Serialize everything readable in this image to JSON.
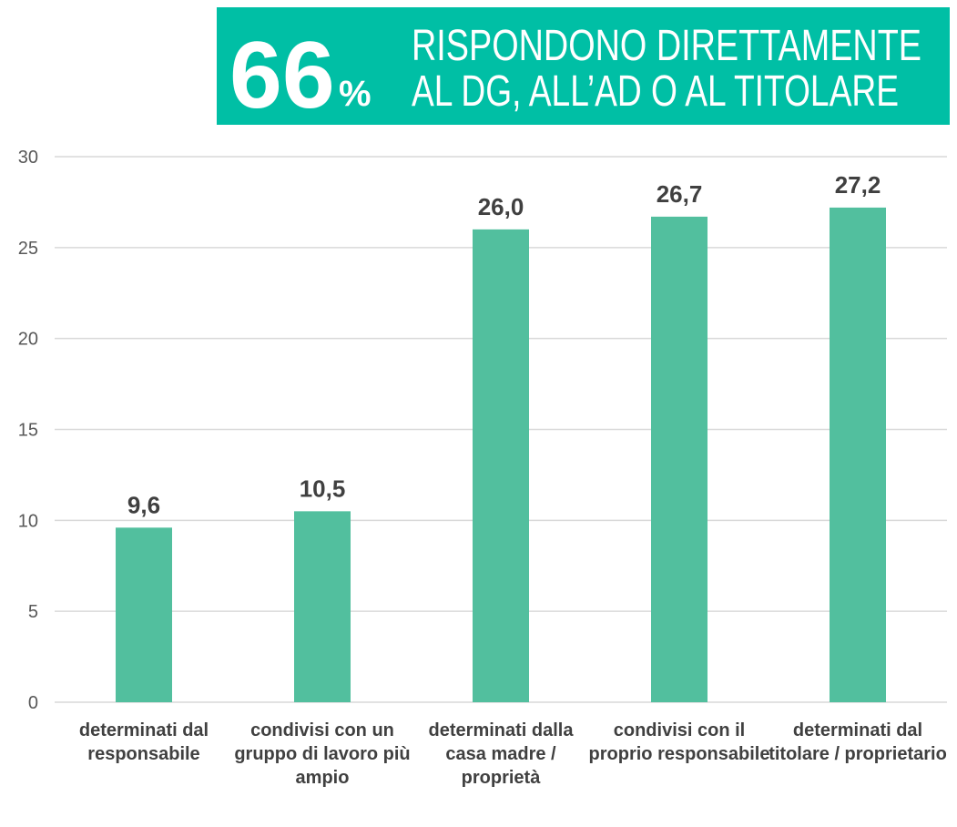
{
  "chart_data": {
    "type": "bar",
    "banner": {
      "value": 66,
      "unit": "%",
      "lines": [
        "RISPONDONO DIRETTAMENTE",
        "AL DG, ALL’AD O AL TITOLARE"
      ],
      "color": "#00bfa5"
    },
    "categories": [
      "determinati dal responsabile",
      "condivisi con un gruppo di lavoro più ampio",
      "determinati dalla casa madre / proprietà",
      "condivisi con il proprio responsabile",
      "determinati dal titolare / proprietario"
    ],
    "values": [
      9.6,
      10.5,
      26.0,
      26.7,
      27.2
    ],
    "value_labels": [
      "9,6",
      "10,5",
      "26,0",
      "26,7",
      "27,2"
    ],
    "color": "#52bf9e",
    "ylim": [
      0,
      30
    ],
    "yticks": [
      0,
      5,
      10,
      15,
      20,
      25,
      30
    ],
    "grid": true
  }
}
